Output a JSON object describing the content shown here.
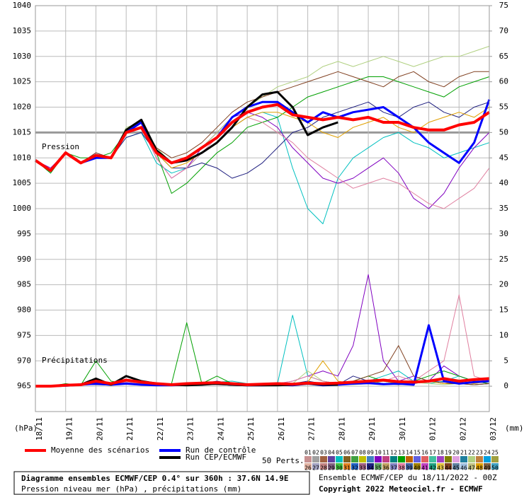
{
  "chart_data": {
    "type": "line",
    "pressure_label": "Pression",
    "precip_label": "Précipitations",
    "y_axis_label": "(hPa)",
    "y2_axis_label": "(mm)",
    "reference_line": 1015,
    "grid": true,
    "x": [
      0,
      12,
      24,
      36,
      48,
      60,
      72,
      84,
      96,
      108,
      120,
      132,
      144,
      156,
      168,
      180,
      192,
      204,
      216,
      228,
      240,
      252,
      264,
      276,
      288,
      300,
      312,
      324,
      336,
      348,
      360
    ],
    "xlim": [
      0,
      360
    ],
    "xticks": [
      {
        "value": 0,
        "label": "18/11"
      },
      {
        "value": 24,
        "label": "19/11"
      },
      {
        "value": 48,
        "label": "20/11"
      },
      {
        "value": 72,
        "label": "21/11"
      },
      {
        "value": 96,
        "label": "22/11"
      },
      {
        "value": 120,
        "label": "23/11"
      },
      {
        "value": 144,
        "label": "24/11"
      },
      {
        "value": 168,
        "label": "25/11"
      },
      {
        "value": 192,
        "label": "26/11"
      },
      {
        "value": 216,
        "label": "27/11"
      },
      {
        "value": 240,
        "label": "28/11"
      },
      {
        "value": 264,
        "label": "29/11"
      },
      {
        "value": 288,
        "label": "30/11"
      },
      {
        "value": 312,
        "label": "01/12"
      },
      {
        "value": 336,
        "label": "02/12"
      },
      {
        "value": 360,
        "label": "03/12"
      }
    ],
    "ylim": [
      960,
      1040
    ],
    "yticks": [
      965,
      970,
      975,
      980,
      985,
      990,
      995,
      1000,
      1005,
      1010,
      1015,
      1020,
      1025,
      1030,
      1035,
      1040
    ],
    "y2lim": [
      -5,
      75
    ],
    "y2ticks": [
      0,
      5,
      10,
      15,
      20,
      25,
      30,
      35,
      40,
      45,
      50,
      55,
      60,
      65,
      70,
      75
    ],
    "perturbations_label": "50 Perts.",
    "perturbation_key": [
      {
        "label": "01",
        "color": "#c89090"
      },
      {
        "label": "02",
        "color": "#a0a0a0"
      },
      {
        "label": "03",
        "color": "#a06040"
      },
      {
        "label": "04",
        "color": "#6040a0"
      },
      {
        "label": "05",
        "color": "#00c0c0"
      },
      {
        "label": "06",
        "color": "#806020"
      },
      {
        "label": "07",
        "color": "#40a040"
      },
      {
        "label": "08",
        "color": "#c0c000"
      },
      {
        "label": "09",
        "color": "#4080c0"
      },
      {
        "label": "10",
        "color": "#8000c0"
      },
      {
        "label": "11",
        "color": "#c04080"
      },
      {
        "label": "12",
        "color": "#008080"
      },
      {
        "label": "13",
        "color": "#00a000"
      },
      {
        "label": "14",
        "color": "#c06000"
      },
      {
        "label": "15",
        "color": "#6060e0"
      },
      {
        "label": "16",
        "color": "#e06060"
      },
      {
        "label": "17",
        "color": "#40c0a0"
      },
      {
        "label": "18",
        "color": "#a040c0"
      },
      {
        "label": "19",
        "color": "#808000"
      },
      {
        "label": "20",
        "color": "#e0a0e0"
      },
      {
        "label": "21",
        "color": "#2080a0"
      },
      {
        "label": "22",
        "color": "#b0d080"
      },
      {
        "label": "23",
        "color": "#c08040"
      },
      {
        "label": "24",
        "color": "#00a0e0"
      },
      {
        "label": "25",
        "color": "#a0a040"
      },
      {
        "label": "26",
        "color": "#e0b0a0"
      },
      {
        "label": "27",
        "color": "#a0a0c0"
      },
      {
        "label": "28",
        "color": "#c08080"
      },
      {
        "label": "29",
        "color": "#806080"
      },
      {
        "label": "30",
        "color": "#40c040"
      },
      {
        "label": "31",
        "color": "#e08020"
      },
      {
        "label": "32",
        "color": "#2060c0"
      },
      {
        "label": "33",
        "color": "#a06080"
      },
      {
        "label": "34",
        "color": "#202080"
      },
      {
        "label": "35",
        "color": "#60a060"
      },
      {
        "label": "36",
        "color": "#c0a060"
      },
      {
        "label": "37",
        "color": "#8080c0"
      },
      {
        "label": "38",
        "color": "#e080a0"
      },
      {
        "label": "39",
        "color": "#4060a0"
      },
      {
        "label": "40",
        "color": "#a08000"
      },
      {
        "label": "41",
        "color": "#c040c0"
      },
      {
        "label": "42",
        "color": "#20a080"
      },
      {
        "label": "43",
        "color": "#e0c040"
      },
      {
        "label": "44",
        "color": "#804020"
      },
      {
        "label": "45",
        "color": "#6080a0"
      },
      {
        "label": "46",
        "color": "#a0c0e0"
      },
      {
        "label": "47",
        "color": "#c0c080"
      },
      {
        "label": "48",
        "color": "#e0a000"
      },
      {
        "label": "49",
        "color": "#806040"
      },
      {
        "label": "50",
        "color": "#40a0c0"
      }
    ],
    "perturbations": [
      {
        "name": "05",
        "color": "#00c0c0",
        "values": [
          1009.5,
          1007,
          1011,
          1009,
          1010,
          1010,
          1014,
          1015,
          1009,
          1007,
          1008,
          1011,
          1013,
          1016,
          1018,
          1019,
          1018,
          1008,
          1000,
          997,
          1006,
          1010,
          1012,
          1014,
          1015,
          1013,
          1012,
          1010,
          1011,
          1012,
          1013
        ],
        "y2_values": [
          0,
          0,
          0.3,
          0.2,
          0.5,
          0.5,
          1,
          0.8,
          0.5,
          0.2,
          0.3,
          0.5,
          0.8,
          1,
          0.5,
          0.3,
          0.5,
          14,
          2,
          1,
          0.5,
          0.8,
          1,
          2,
          3,
          1,
          0.5,
          1,
          2,
          1,
          0.5
        ]
      },
      {
        "name": "10",
        "color": "#8000c0",
        "values": [
          1009.5,
          1008,
          1011,
          1009,
          1011,
          1010,
          1015,
          1016,
          1010,
          1006,
          1008,
          1012,
          1015,
          1018,
          1019,
          1018,
          1016,
          1012,
          1009,
          1006,
          1005,
          1006,
          1008,
          1010,
          1007,
          1002,
          1000,
          1003,
          1008,
          1012,
          1015
        ],
        "y2_values": [
          0,
          0,
          0.2,
          0.5,
          0.5,
          0.3,
          1,
          1,
          0.5,
          0.3,
          0.5,
          0.4,
          0.3,
          0.5,
          0.5,
          0.3,
          0.5,
          1,
          2,
          3,
          2,
          8,
          22,
          5,
          1,
          2,
          1,
          4,
          2,
          1,
          0.5
        ]
      },
      {
        "name": "13",
        "color": "#00a000",
        "values": [
          1009.5,
          1007,
          1011,
          1010,
          1010,
          1011,
          1015,
          1016,
          1011,
          1003,
          1005,
          1008,
          1011,
          1013,
          1016,
          1017,
          1018,
          1020,
          1022,
          1023,
          1024,
          1025,
          1026,
          1026,
          1025,
          1024,
          1023,
          1022,
          1024,
          1025,
          1026
        ],
        "y2_values": [
          0,
          0,
          0.5,
          0.2,
          5,
          1,
          0.5,
          0.3,
          0.3,
          0.5,
          12.5,
          0.5,
          2,
          0.5,
          0.3,
          0.2,
          0.4,
          0.5,
          0.5,
          0.3,
          0.5,
          1,
          2,
          1,
          0.5,
          1,
          2,
          3,
          2,
          1,
          0.5
        ]
      },
      {
        "name": "22",
        "color": "#b0d080",
        "values": [
          1009.5,
          1007.5,
          1011,
          1009,
          1010,
          1010,
          1016,
          1017,
          1012,
          1009,
          1010,
          1012,
          1015,
          1018,
          1020,
          1022,
          1024,
          1025,
          1026,
          1028,
          1029,
          1028,
          1029,
          1030,
          1029,
          1028,
          1029,
          1030,
          1030,
          1031,
          1032
        ],
        "y2_values": [
          0,
          0,
          0.2,
          0.3,
          0.5,
          0.3,
          0.5,
          0.5,
          0.3,
          0.2,
          0.3,
          0.5,
          0.3,
          0.2,
          0.2,
          0.3,
          0.5,
          0.5,
          3,
          1,
          0.5,
          0.3,
          0.5,
          0.3,
          0.5,
          0.8,
          0.5,
          0.3,
          0.5,
          0.3,
          0.5
        ]
      },
      {
        "name": "34",
        "color": "#202080",
        "values": [
          1009.5,
          1007.5,
          1011,
          1009,
          1010,
          1010,
          1014,
          1015,
          1011,
          1008,
          1008,
          1009,
          1008,
          1006,
          1007,
          1009,
          1012,
          1015,
          1016,
          1018,
          1019,
          1020,
          1021,
          1019,
          1018,
          1020,
          1021,
          1019,
          1018,
          1020,
          1021
        ],
        "y2_values": [
          0,
          0,
          0.2,
          0.3,
          0.3,
          0.2,
          0.5,
          0.3,
          0.2,
          0.5,
          0.3,
          0.5,
          1,
          0.5,
          0.3,
          0.2,
          0.3,
          0.5,
          1,
          0.5,
          0.3,
          2,
          1,
          0.5,
          0.3,
          0.5,
          1,
          0.8,
          0.5,
          0.3,
          0.5
        ]
      },
      {
        "name": "38",
        "color": "#e080a0",
        "values": [
          1009.5,
          1007.5,
          1011,
          1009,
          1010,
          1010,
          1015,
          1016,
          1010,
          1006,
          1008,
          1011,
          1014,
          1016,
          1018,
          1017,
          1015,
          1013,
          1010,
          1008,
          1006,
          1004,
          1005,
          1006,
          1005,
          1003,
          1001,
          1000,
          1002,
          1004,
          1008
        ],
        "y2_values": [
          0,
          0,
          0.3,
          0.3,
          0.5,
          0.3,
          0.8,
          0.5,
          0.3,
          0.3,
          0.5,
          0.5,
          0.3,
          0.2,
          0.3,
          0.3,
          0.5,
          1,
          2,
          1,
          0.5,
          1,
          0.8,
          1,
          2,
          1,
          3,
          5,
          18,
          2,
          1
        ]
      },
      {
        "name": "44",
        "color": "#804020",
        "values": [
          1009.5,
          1007.5,
          1011,
          1009,
          1011,
          1010,
          1015,
          1017,
          1012,
          1010,
          1011,
          1013,
          1016,
          1019,
          1021,
          1022,
          1023,
          1024,
          1025,
          1026,
          1027,
          1026,
          1025,
          1024,
          1026,
          1027,
          1025,
          1024,
          1026,
          1027,
          1027
        ],
        "y2_values": [
          0,
          0,
          0.2,
          0.2,
          0.5,
          0.3,
          0.5,
          0.4,
          0.3,
          0.2,
          0.3,
          0.4,
          0.3,
          0.2,
          0.2,
          0.2,
          0.3,
          0.5,
          0.5,
          0.3,
          0.5,
          1,
          2,
          3,
          8,
          2,
          1,
          0.5,
          0.5,
          0.3,
          0.5
        ]
      },
      {
        "name": "48",
        "color": "#e0a000",
        "values": [
          1009.5,
          1007.5,
          1011,
          1009,
          1010,
          1010,
          1015,
          1016,
          1011,
          1008,
          1009,
          1011,
          1013,
          1016,
          1018,
          1019,
          1019,
          1018,
          1017,
          1015,
          1014,
          1016,
          1017,
          1018,
          1016,
          1015,
          1017,
          1018,
          1019,
          1018,
          1020
        ],
        "y2_values": [
          0,
          0,
          0.2,
          0.3,
          0.5,
          0.3,
          0.5,
          0.5,
          0.3,
          0.3,
          0.3,
          0.5,
          0.5,
          0.3,
          0.2,
          0.3,
          0.3,
          0.5,
          0.8,
          5,
          1,
          0.5,
          0.5,
          1,
          0.5,
          0.8,
          1,
          0.5,
          0.8,
          0.5,
          1
        ]
      }
    ],
    "series": [
      {
        "name": "Run de contrôle",
        "color": "#0000ff",
        "values": [
          1009.5,
          1007.5,
          1011,
          1009,
          1010,
          1010,
          1015,
          1017,
          1011,
          1009,
          1010,
          1012,
          1014,
          1018,
          1020,
          1021,
          1021,
          1019,
          1017,
          1019,
          1018,
          1019,
          1019.5,
          1020,
          1018,
          1016,
          1013,
          1011,
          1009,
          1013,
          1021.5
        ],
        "y2_values": [
          0,
          0,
          0.1,
          0.3,
          0.5,
          0.3,
          0.5,
          0.3,
          0.2,
          0.2,
          0.3,
          0.4,
          0.5,
          0.3,
          0.2,
          0.2,
          0.3,
          0.2,
          0.5,
          0.2,
          0.3,
          0.5,
          0.6,
          0.4,
          0.5,
          0.3,
          12,
          1,
          0.5,
          0.8,
          1
        ]
      },
      {
        "name": "Run CEP/ECMWF",
        "color": "#000000",
        "values": [
          1009.5,
          1007.5,
          1011,
          1009,
          1010.5,
          1010,
          1015.5,
          1017.5,
          1011.5,
          1009,
          1009.5,
          1011,
          1013,
          1016,
          1020,
          1022.5,
          1023,
          1020,
          1014.5,
          1016,
          1017,
          null,
          null,
          null,
          null,
          null,
          null,
          null,
          null,
          null,
          null
        ],
        "y2_values": [
          0,
          0,
          0.2,
          0.3,
          1.5,
          0.3,
          2,
          1,
          0.5,
          0.3,
          0.2,
          0.3,
          0.5,
          0.3,
          0.2,
          0.2,
          0.2,
          0.3,
          0.5,
          0.3,
          0.3,
          null,
          null,
          null,
          null,
          null,
          null,
          null,
          null,
          null,
          null
        ]
      },
      {
        "name": "Moyenne des scénarios",
        "color": "#ff0000",
        "values": [
          1009.5,
          1007.5,
          1011,
          1009,
          1010.5,
          1010,
          1015,
          1016,
          1011,
          1009,
          1010,
          1012,
          1014,
          1017,
          1019,
          1020,
          1020.5,
          1018.5,
          1018,
          1017.5,
          1018,
          1017.5,
          1018,
          1017,
          1017,
          1016,
          1015.5,
          1015.5,
          1016.5,
          1017,
          1019
        ],
        "y2_values": [
          0,
          0,
          0.2,
          0.3,
          1,
          0.5,
          1.2,
          0.8,
          0.5,
          0.3,
          0.5,
          0.6,
          0.7,
          0.5,
          0.3,
          0.4,
          0.5,
          0.4,
          0.6,
          0.5,
          0.6,
          0.8,
          1,
          1.2,
          0.9,
          0.8,
          1,
          1.5,
          1,
          1.3,
          1.5
        ]
      }
    ],
    "footer": {
      "title": "Diagramme ensembles ECMWF/CEP 0.4° sur 360h : 37.6N 14.9E",
      "subtitle": "Pression niveau mer (hPa) , précipitations (mm)",
      "run": "Ensemble ECMWF/CEP du 18/11/2022 - 00Z",
      "copyright": "Copyright 2022 Meteociel.fr - ECMWF"
    }
  }
}
